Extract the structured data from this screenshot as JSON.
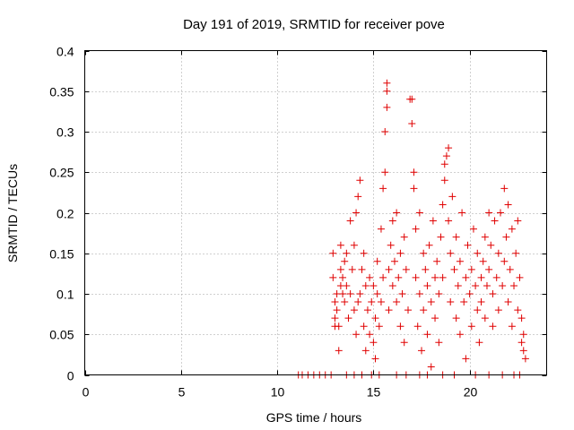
{
  "chart_data": {
    "type": "scatter",
    "title": "Day 191 of 2019, SRMTID for receiver pove",
    "xlabel": "GPS time / hours",
    "ylabel": "SRMTID / TECUs",
    "xlim": [
      0,
      24
    ],
    "ylim": [
      0,
      0.4
    ],
    "xticks": [
      0,
      5,
      10,
      15,
      20
    ],
    "xtick_labels": [
      "0",
      "5",
      "10",
      "15",
      "20"
    ],
    "yticks": [
      0,
      0.05,
      0.1,
      0.15,
      0.2,
      0.25,
      0.3,
      0.35,
      0.4
    ],
    "ytick_labels": [
      "0",
      "0.05",
      "0.1",
      "0.15",
      "0.2",
      "0.25",
      "0.3",
      "0.35",
      "0.4"
    ],
    "grid": true,
    "marker": "+",
    "color": "#e00000",
    "series": [
      {
        "name": "SRMTID",
        "points": [
          [
            11.1,
            0
          ],
          [
            11.3,
            0
          ],
          [
            11.6,
            0
          ],
          [
            11.9,
            0
          ],
          [
            12.2,
            0
          ],
          [
            12.5,
            0
          ],
          [
            12.8,
            0
          ],
          [
            13.6,
            0
          ],
          [
            14.0,
            0
          ],
          [
            14.4,
            0
          ],
          [
            14.9,
            0
          ],
          [
            15.3,
            0
          ],
          [
            16.2,
            0
          ],
          [
            16.7,
            0
          ],
          [
            17.4,
            0
          ],
          [
            17.8,
            0
          ],
          [
            18.6,
            0
          ],
          [
            19.2,
            0
          ],
          [
            20.3,
            0
          ],
          [
            21.0,
            0
          ],
          [
            21.7,
            0
          ],
          [
            22.3,
            0
          ],
          [
            22.6,
            0
          ],
          [
            12.9,
            0.15
          ],
          [
            12.9,
            0.12
          ],
          [
            13.0,
            0.09
          ],
          [
            13.0,
            0.07
          ],
          [
            13.0,
            0.06
          ],
          [
            13.1,
            0.08
          ],
          [
            13.1,
            0.1
          ],
          [
            13.2,
            0.03
          ],
          [
            13.2,
            0.06
          ],
          [
            13.3,
            0.11
          ],
          [
            13.3,
            0.13
          ],
          [
            13.3,
            0.16
          ],
          [
            13.4,
            0.1
          ],
          [
            13.4,
            0.12
          ],
          [
            13.5,
            0.09
          ],
          [
            13.5,
            0.14
          ],
          [
            13.6,
            0.15
          ],
          [
            13.6,
            0.11
          ],
          [
            13.7,
            0.07
          ],
          [
            13.8,
            0.1
          ],
          [
            13.8,
            0.19
          ],
          [
            13.9,
            0.13
          ],
          [
            14.0,
            0.08
          ],
          [
            14.0,
            0.16
          ],
          [
            14.1,
            0.2
          ],
          [
            14.1,
            0.05
          ],
          [
            14.2,
            0.09
          ],
          [
            14.2,
            0.22
          ],
          [
            14.3,
            0.24
          ],
          [
            14.3,
            0.1
          ],
          [
            14.4,
            0.13
          ],
          [
            14.5,
            0.06
          ],
          [
            14.5,
            0.15
          ],
          [
            14.6,
            0.11
          ],
          [
            14.6,
            0.03
          ],
          [
            14.7,
            0.08
          ],
          [
            14.8,
            0.12
          ],
          [
            14.8,
            0.05
          ],
          [
            14.9,
            0.09
          ],
          [
            15.0,
            0.04
          ],
          [
            15.0,
            0.11
          ],
          [
            15.1,
            0.02
          ],
          [
            15.1,
            0.07
          ],
          [
            15.2,
            0.1
          ],
          [
            15.2,
            0.14
          ],
          [
            15.3,
            0.06
          ],
          [
            15.4,
            0.09
          ],
          [
            15.4,
            0.18
          ],
          [
            15.5,
            0.23
          ],
          [
            15.5,
            0.12
          ],
          [
            15.6,
            0.25
          ],
          [
            15.6,
            0.3
          ],
          [
            15.7,
            0.36
          ],
          [
            15.7,
            0.35
          ],
          [
            15.7,
            0.33
          ],
          [
            15.8,
            0.13
          ],
          [
            15.8,
            0.08
          ],
          [
            15.9,
            0.16
          ],
          [
            16.0,
            0.11
          ],
          [
            16.0,
            0.19
          ],
          [
            16.1,
            0.14
          ],
          [
            16.2,
            0.2
          ],
          [
            16.2,
            0.09
          ],
          [
            16.3,
            0.12
          ],
          [
            16.4,
            0.06
          ],
          [
            16.4,
            0.15
          ],
          [
            16.5,
            0.1
          ],
          [
            16.6,
            0.17
          ],
          [
            16.6,
            0.04
          ],
          [
            16.7,
            0.13
          ],
          [
            16.8,
            0.08
          ],
          [
            16.9,
            0.34
          ],
          [
            17.0,
            0.34
          ],
          [
            17.0,
            0.31
          ],
          [
            17.1,
            0.25
          ],
          [
            17.1,
            0.23
          ],
          [
            17.2,
            0.18
          ],
          [
            17.2,
            0.12
          ],
          [
            17.3,
            0.06
          ],
          [
            17.4,
            0.2
          ],
          [
            17.4,
            0.1
          ],
          [
            17.5,
            0.03
          ],
          [
            17.6,
            0.15
          ],
          [
            17.6,
            0.08
          ],
          [
            17.7,
            0.13
          ],
          [
            17.8,
            0.05
          ],
          [
            17.8,
            0.11
          ],
          [
            17.9,
            0.16
          ],
          [
            18.0,
            0.09
          ],
          [
            18.0,
            0.01
          ],
          [
            18.1,
            0.19
          ],
          [
            18.2,
            0.12
          ],
          [
            18.2,
            0.07
          ],
          [
            18.3,
            0.14
          ],
          [
            18.4,
            0.1
          ],
          [
            18.4,
            0.04
          ],
          [
            18.5,
            0.17
          ],
          [
            18.6,
            0.21
          ],
          [
            18.6,
            0.12
          ],
          [
            18.7,
            0.26
          ],
          [
            18.7,
            0.24
          ],
          [
            18.8,
            0.27
          ],
          [
            18.9,
            0.28
          ],
          [
            18.9,
            0.19
          ],
          [
            19.0,
            0.15
          ],
          [
            19.0,
            0.09
          ],
          [
            19.1,
            0.22
          ],
          [
            19.2,
            0.13
          ],
          [
            19.3,
            0.07
          ],
          [
            19.3,
            0.17
          ],
          [
            19.4,
            0.11
          ],
          [
            19.5,
            0.05
          ],
          [
            19.5,
            0.14
          ],
          [
            19.6,
            0.2
          ],
          [
            19.7,
            0.09
          ],
          [
            19.8,
            0.02
          ],
          [
            19.8,
            0.12
          ],
          [
            19.9,
            0.16
          ],
          [
            20.0,
            0.1
          ],
          [
            20.1,
            0.13
          ],
          [
            20.1,
            0.06
          ],
          [
            20.2,
            0.18
          ],
          [
            20.3,
            0.11
          ],
          [
            20.4,
            0.08
          ],
          [
            20.4,
            0.15
          ],
          [
            20.5,
            0.04
          ],
          [
            20.6,
            0.12
          ],
          [
            20.6,
            0.09
          ],
          [
            20.7,
            0.14
          ],
          [
            20.8,
            0.17
          ],
          [
            20.8,
            0.07
          ],
          [
            20.9,
            0.11
          ],
          [
            21.0,
            0.2
          ],
          [
            21.0,
            0.13
          ],
          [
            21.1,
            0.16
          ],
          [
            21.2,
            0.1
          ],
          [
            21.2,
            0.06
          ],
          [
            21.3,
            0.19
          ],
          [
            21.4,
            0.12
          ],
          [
            21.5,
            0.08
          ],
          [
            21.5,
            0.15
          ],
          [
            21.6,
            0.2
          ],
          [
            21.7,
            0.11
          ],
          [
            21.8,
            0.23
          ],
          [
            21.8,
            0.14
          ],
          [
            21.9,
            0.17
          ],
          [
            22.0,
            0.09
          ],
          [
            22.0,
            0.21
          ],
          [
            22.1,
            0.13
          ],
          [
            22.2,
            0.18
          ],
          [
            22.2,
            0.06
          ],
          [
            22.3,
            0.11
          ],
          [
            22.4,
            0.15
          ],
          [
            22.5,
            0.08
          ],
          [
            22.5,
            0.19
          ],
          [
            22.6,
            0.12
          ],
          [
            22.7,
            0.07
          ],
          [
            22.7,
            0.04
          ],
          [
            22.8,
            0.03
          ],
          [
            22.8,
            0.05
          ],
          [
            22.9,
            0.02
          ]
        ]
      }
    ]
  }
}
